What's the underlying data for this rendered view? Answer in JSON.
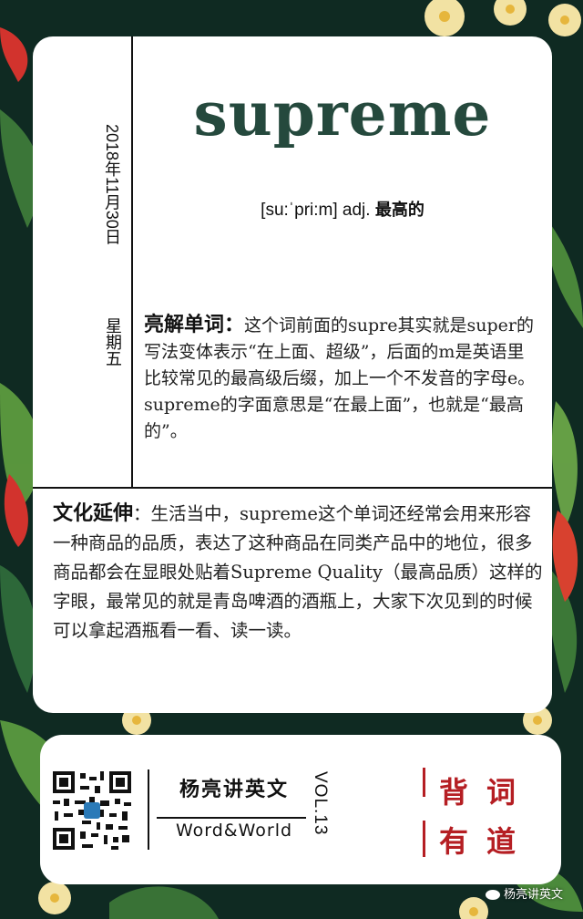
{
  "card": {
    "date": "2018年11月30日",
    "weekday": "星期五",
    "word": "supreme",
    "pronunciation": "[su:ˈpri:m] adj.",
    "meaning": "最高的",
    "explain_head": "亮解单词：",
    "explain_body": "这个词前面的supre其实就是super的写法变体表示“在上面、超级”，后面的m是英语里比较常见的最高级后缀，加上一个不发音的字母e。supreme的字面意思是“在最上面”，也就是“最高的”。",
    "culture_head": "文化延伸",
    "culture_body": "：生活当中，supreme这个单词还经常会用来形容一种商品的品质，表达了这种商品在同类产品中的地位，很多商品都会在显眼处贴着Supreme Quality（最高品质）这样的字眼，最常见的就是青岛啤酒的酒瓶上，大家下次见到的时候可以拿起酒瓶看一看、读一读。"
  },
  "footer": {
    "brand_cn": "杨亮讲英文",
    "brand_en": "Word&World",
    "vol": "VOL.13",
    "slogan": [
      "背",
      "词",
      "有",
      "道"
    ]
  },
  "watermark": "杨亮讲英文",
  "colors": {
    "background": "#0f2a22",
    "word": "#25493d",
    "accent_red": "#b51e23"
  }
}
